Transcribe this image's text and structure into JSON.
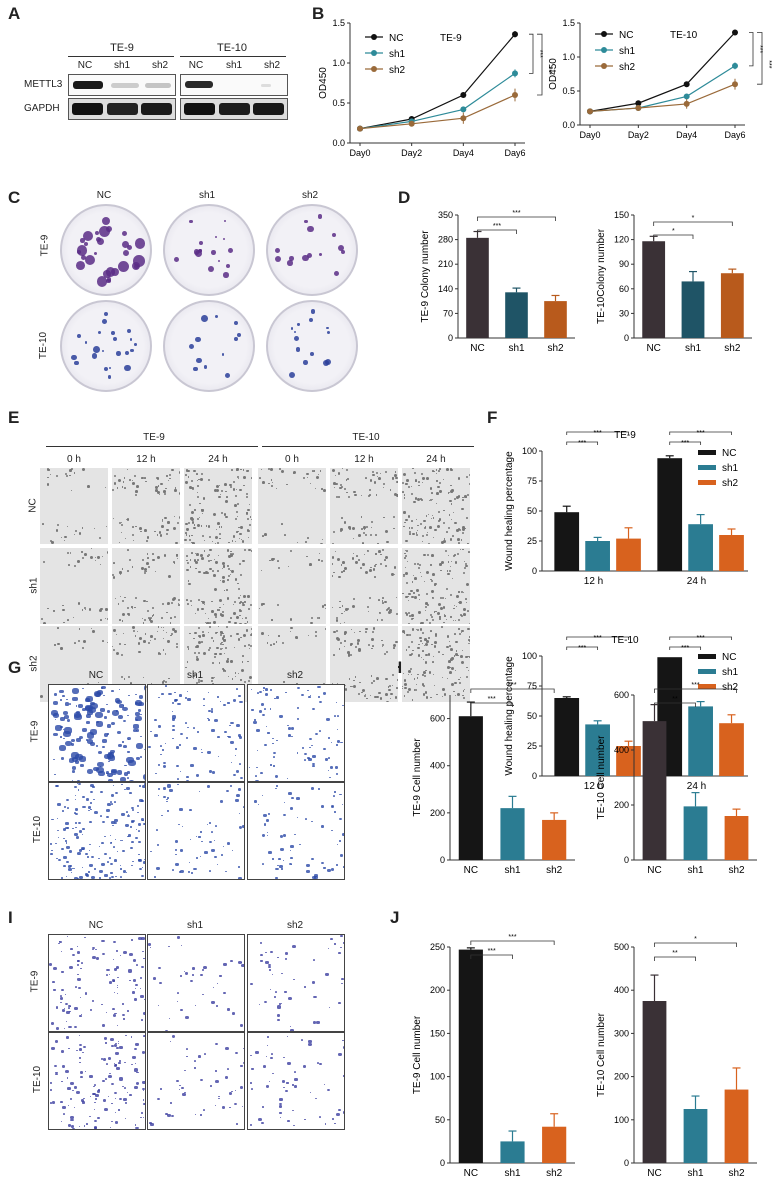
{
  "panels": {
    "A": "A",
    "B": "B",
    "C": "C",
    "D": "D",
    "E": "E",
    "F": "F",
    "G": "G",
    "H": "H",
    "I": "I",
    "J": "J"
  },
  "panel_a": {
    "cell_lines": [
      "TE-9",
      "TE-10"
    ],
    "lanes": [
      "NC",
      "sh1",
      "sh2"
    ],
    "proteins": [
      "METTL3",
      "GAPDH"
    ]
  },
  "panel_c": {
    "columns": [
      "NC",
      "sh1",
      "sh2"
    ],
    "rows": [
      "TE-9",
      "TE-10"
    ]
  },
  "panel_e": {
    "cell_lines": [
      "TE-9",
      "TE-10"
    ],
    "times": [
      "0 h",
      "12 h",
      "24 h"
    ],
    "rows": [
      "NC",
      "sh1",
      "sh2"
    ]
  },
  "panel_g": {
    "columns": [
      "NC",
      "sh1",
      "sh2"
    ],
    "rows": [
      "TE-9",
      "TE-10"
    ]
  },
  "panel_i": {
    "columns": [
      "NC",
      "sh1",
      "sh2"
    ],
    "rows": [
      "TE-9",
      "TE-10"
    ]
  },
  "colors": {
    "NC_line": "#111111",
    "sh1_line": "#2e8b99",
    "sh2_line": "#9a6a3a",
    "NC_bar": "#3a3136",
    "sh1_bar": "#1f5466",
    "sh2_bar": "#b85a1c",
    "NC_bar_b": "#151515",
    "sh1_bar_b": "#2b7c92",
    "sh2_bar_b": "#d8621e"
  },
  "chart_data": [
    {
      "id": "B-TE9",
      "type": "line",
      "title": "TE-9",
      "ylabel": "OD450",
      "categories": [
        "Day0",
        "Day2",
        "Day4",
        "Day6"
      ],
      "ylim": [
        0,
        1.5
      ],
      "yticks": [
        "0.0",
        "0.5",
        "1.0",
        "1.5"
      ],
      "series": [
        {
          "name": "NC",
          "values": [
            0.18,
            0.3,
            0.6,
            1.36
          ],
          "err": [
            0.01,
            0.03,
            0.02,
            0.04
          ]
        },
        {
          "name": "sh1",
          "values": [
            0.18,
            0.27,
            0.42,
            0.87
          ],
          "err": [
            0.01,
            0.03,
            0.02,
            0.05
          ]
        },
        {
          "name": "sh2",
          "values": [
            0.18,
            0.24,
            0.31,
            0.6
          ],
          "err": [
            0.01,
            0.03,
            0.07,
            0.08
          ]
        }
      ],
      "annotations": [
        "***",
        "***"
      ]
    },
    {
      "id": "B-TE10",
      "type": "line",
      "title": "TE-10",
      "ylabel": "OD450",
      "categories": [
        "Day0",
        "Day2",
        "Day4",
        "Day6"
      ],
      "ylim": [
        0,
        1.5
      ],
      "yticks": [
        "0.0",
        "0.5",
        "1.0",
        "1.5"
      ],
      "series": [
        {
          "name": "NC",
          "values": [
            0.2,
            0.32,
            0.6,
            1.36
          ],
          "err": [
            0.01,
            0.02,
            0.02,
            0.04
          ]
        },
        {
          "name": "sh1",
          "values": [
            0.2,
            0.25,
            0.42,
            0.87
          ],
          "err": [
            0.01,
            0.02,
            0.02,
            0.05
          ]
        },
        {
          "name": "sh2",
          "values": [
            0.2,
            0.25,
            0.31,
            0.6
          ],
          "err": [
            0.01,
            0.02,
            0.07,
            0.08
          ]
        }
      ],
      "annotations": [
        "***",
        "***"
      ]
    },
    {
      "id": "D-TE9",
      "type": "bar",
      "ylabel": "TE-9 Colony number",
      "categories": [
        "NC",
        "sh1",
        "sh2"
      ],
      "values": [
        285,
        130,
        105
      ],
      "err": [
        18,
        12,
        16
      ],
      "ylim": [
        0,
        350
      ],
      "yticks": [
        "0",
        "70",
        "140",
        "210",
        "280",
        "350"
      ],
      "annotations": [
        "***",
        "***"
      ]
    },
    {
      "id": "D-TE10",
      "type": "bar",
      "ylabel": "TE-10Colony number",
      "categories": [
        "NC",
        "sh1",
        "sh2"
      ],
      "values": [
        118,
        69,
        79
      ],
      "err": [
        6,
        12,
        5
      ],
      "ylim": [
        0,
        150
      ],
      "yticks": [
        "0",
        "30",
        "60",
        "90",
        "120",
        "150"
      ],
      "annotations": [
        "*",
        "*"
      ]
    },
    {
      "id": "F-TE9",
      "type": "bar",
      "title": "TE-9",
      "ylabel": "Wound healing percentage",
      "categories": [
        "12 h",
        "24 h"
      ],
      "series": [
        {
          "name": "NC",
          "values": [
            49,
            94
          ],
          "err": [
            5,
            2
          ]
        },
        {
          "name": "sh1",
          "values": [
            25,
            39
          ],
          "err": [
            3,
            8
          ]
        },
        {
          "name": "sh2",
          "values": [
            27,
            30
          ],
          "err": [
            9,
            5
          ]
        }
      ],
      "ylim": [
        0,
        100
      ],
      "yticks": [
        "0",
        "25",
        "50",
        "75",
        "100"
      ],
      "annotations": [
        "***",
        "***",
        "***",
        "***"
      ]
    },
    {
      "id": "F-TE10",
      "type": "bar",
      "title": "TE-10",
      "ylabel": "Wound healing percentage",
      "categories": [
        "12 h",
        "24 h"
      ],
      "series": [
        {
          "name": "NC",
          "values": [
            65,
            99
          ],
          "err": [
            1,
            0
          ]
        },
        {
          "name": "sh1",
          "values": [
            43,
            58
          ],
          "err": [
            3,
            4
          ]
        },
        {
          "name": "sh2",
          "values": [
            25,
            44
          ],
          "err": [
            4,
            7
          ]
        }
      ],
      "ylim": [
        0,
        100
      ],
      "yticks": [
        "0",
        "25",
        "50",
        "75",
        "100"
      ],
      "annotations": [
        "***",
        "***",
        "***",
        "***"
      ]
    },
    {
      "id": "H-TE9",
      "type": "bar",
      "ylabel": "TE-9 Cell number",
      "categories": [
        "NC",
        "sh1",
        "sh2"
      ],
      "values": [
        610,
        220,
        170
      ],
      "err": [
        60,
        50,
        30
      ],
      "ylim": [
        0,
        700
      ],
      "yticks": [
        "0",
        "200",
        "400",
        "600"
      ],
      "annotations": [
        "***",
        "***"
      ]
    },
    {
      "id": "H-TE10",
      "type": "bar",
      "ylabel": "TE-10 Cell number",
      "categories": [
        "NC",
        "sh1",
        "sh2"
      ],
      "values": [
        505,
        195,
        160
      ],
      "err": [
        60,
        50,
        25
      ],
      "ylim": [
        0,
        600
      ],
      "yticks": [
        "0",
        "200",
        "400",
        "600"
      ],
      "annotations": [
        "**",
        "***"
      ]
    },
    {
      "id": "J-TE9",
      "type": "bar",
      "ylabel": "TE-9 Cell number",
      "categories": [
        "NC",
        "sh1",
        "sh2"
      ],
      "values": [
        247,
        25,
        42
      ],
      "err": [
        2,
        12,
        15
      ],
      "ylim": [
        0,
        250
      ],
      "yticks": [
        "0",
        "50",
        "100",
        "150",
        "200",
        "250"
      ],
      "annotations": [
        "***",
        "***"
      ]
    },
    {
      "id": "J-TE10",
      "type": "bar",
      "ylabel": "TE-10 Cell number",
      "categories": [
        "NC",
        "sh1",
        "sh2"
      ],
      "values": [
        375,
        125,
        170
      ],
      "err": [
        60,
        30,
        50
      ],
      "ylim": [
        0,
        500
      ],
      "yticks": [
        "0",
        "100",
        "200",
        "300",
        "400",
        "500"
      ],
      "annotations": [
        "**",
        "*"
      ]
    }
  ]
}
